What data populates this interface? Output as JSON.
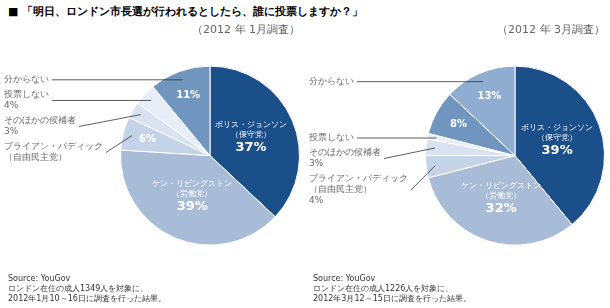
{
  "title": "■ 「明日、ロンドン市長選が行われるとしたら、誰に投票しますか？」",
  "chart_data": [
    {
      "type": "pie",
      "subtitle": "（2012 年 1月調査）",
      "categories": [
        "ボリス・ジョンソン\n（保守党）",
        "ケン・リビングストン\n（労働党）",
        "ブライアン・パディック\n（自由民主党）",
        "そのほかの候補者",
        "投票しない",
        "分からない"
      ],
      "values": [
        37,
        39,
        6,
        3,
        4,
        11
      ],
      "value_labels": [
        "37%",
        "39%",
        "6%",
        "3%",
        "4%",
        "11%"
      ],
      "data_labels": true,
      "colors": [
        "#1b4f8a",
        "#a8bcd8",
        "#c5d3e8",
        "#d8e2f0",
        "#e8eef7",
        "#7096c0"
      ],
      "annotations": [
        "Source: YouGov\nロンドン在住の成人1349人を対象に、\n2012年1月10～16日に調査を行った結果。"
      ]
    },
    {
      "type": "pie",
      "subtitle": "（2012 年 3月調査）",
      "categories": [
        "ボリス・ジョンソン\n（保守党）",
        "ケン・リビングストン\n（労働党）",
        "ブライアン・パディック\n（自由民主党）",
        "そのほかの候補者",
        "投票しない",
        null,
        "分からない"
      ],
      "values": [
        39,
        32,
        4,
        3,
        1,
        8,
        13
      ],
      "value_labels": [
        "39%",
        "32%",
        "4%",
        "3%",
        null,
        "8%",
        "13%"
      ],
      "data_labels": true,
      "colors": [
        "#1b4f8a",
        "#a8bcd8",
        "#c5d3e8",
        "#d8e2f0",
        "#e8eef7",
        "#7096c0",
        "#8fadd0"
      ],
      "annotations": [
        "Source: YouGov\nロンドン在住の成人1226人を対象に、\n2012年3月12～15日に調査を行った結果。"
      ]
    }
  ]
}
